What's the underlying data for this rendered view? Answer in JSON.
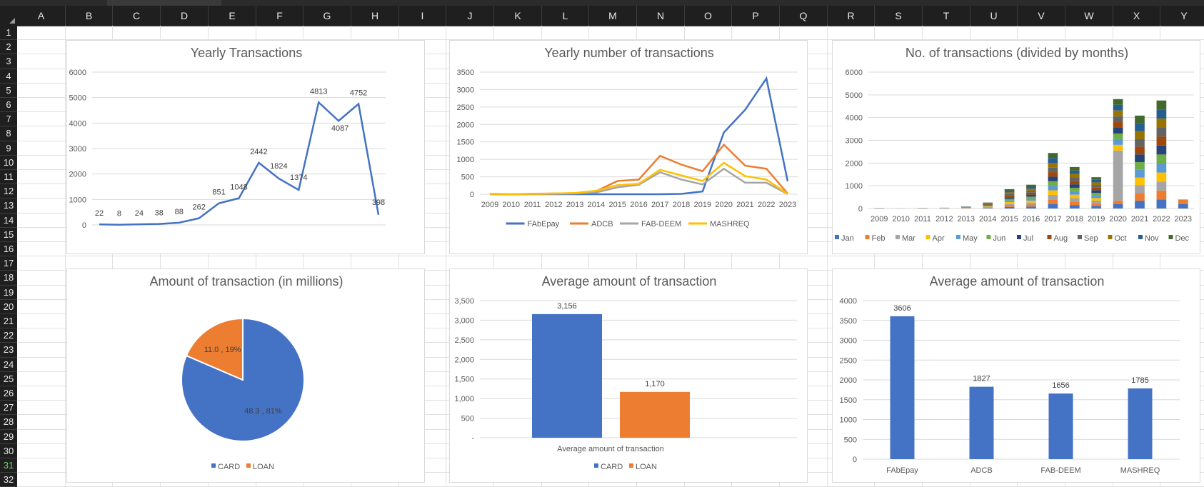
{
  "sheet": {
    "columns": [
      "A",
      "B",
      "C",
      "D",
      "E",
      "F",
      "G",
      "H",
      "I",
      "J",
      "K",
      "L",
      "M",
      "N",
      "O",
      "P",
      "Q",
      "R",
      "S",
      "T",
      "U",
      "V",
      "W",
      "X",
      "Y"
    ],
    "rows": [
      "1",
      "2",
      "3",
      "4",
      "5",
      "6",
      "7",
      "8",
      "9",
      "10",
      "11",
      "12",
      "13",
      "14",
      "15",
      "16",
      "17",
      "18",
      "19",
      "20",
      "21",
      "22",
      "23",
      "24",
      "25",
      "26",
      "27",
      "28",
      "29",
      "30",
      "31",
      "32"
    ],
    "selected_row": "31"
  },
  "colors": {
    "blue": "#4472c4",
    "orange": "#ed7d31",
    "gray": "#a5a5a5",
    "yellow": "#ffc000",
    "lightblue": "#5b9bd5",
    "green": "#70ad47",
    "navy": "#264478",
    "brown": "#9e480e",
    "darkgray": "#636363",
    "olive": "#997300",
    "steel": "#255e91",
    "darkgreen": "#43682b"
  },
  "chart_data": [
    {
      "id": "yearly-transactions",
      "type": "line",
      "title": "Yearly Transactions",
      "ylim": [
        0,
        6000
      ],
      "y_ticks": [
        "0",
        "1000",
        "2000",
        "3000",
        "4000",
        "5000",
        "6000"
      ],
      "values": [
        22,
        8,
        24,
        38,
        88,
        262,
        851,
        1048,
        2442,
        1824,
        1374,
        4813,
        4087,
        4752,
        398
      ],
      "data_labels": [
        "22",
        "8",
        "24",
        "38",
        "88",
        "262",
        "851",
        "1048",
        "2442",
        "1824",
        "1374",
        "4813",
        "4087",
        "4752",
        "398"
      ]
    },
    {
      "id": "yearly-number-of-transactions",
      "type": "line",
      "title": "Yearly number of transactions",
      "ylim": [
        0,
        3500
      ],
      "y_ticks": [
        "0",
        "500",
        "1000",
        "1500",
        "2000",
        "2500",
        "3000",
        "3500"
      ],
      "categories": [
        "2009",
        "2010",
        "2011",
        "2012",
        "2013",
        "2014",
        "2015",
        "2016",
        "2017",
        "2018",
        "2019",
        "2020",
        "2021",
        "2022",
        "2023"
      ],
      "series": [
        {
          "name": "FAbEpay",
          "color": "#4472c4",
          "values": [
            0,
            0,
            0,
            0,
            0,
            0,
            0,
            0,
            0,
            10,
            80,
            1770,
            2420,
            3320,
            370
          ]
        },
        {
          "name": "ADCB",
          "color": "#ed7d31",
          "values": [
            10,
            0,
            15,
            20,
            30,
            90,
            380,
            420,
            1100,
            850,
            660,
            1420,
            820,
            730,
            20
          ]
        },
        {
          "name": "FAB-DEEM",
          "color": "#a5a5a5",
          "values": [
            5,
            0,
            5,
            10,
            20,
            50,
            200,
            270,
            630,
            420,
            280,
            730,
            330,
            330,
            5
          ]
        },
        {
          "name": "MASHREQ",
          "color": "#ffc000",
          "values": [
            10,
            5,
            10,
            20,
            35,
            100,
            260,
            300,
            700,
            540,
            380,
            900,
            520,
            420,
            10
          ]
        }
      ],
      "legend": "bottom"
    },
    {
      "id": "transactions-by-months",
      "type": "bar",
      "stacked": true,
      "title": "No. of transactions (divided by months)",
      "ylim": [
        0,
        6000
      ],
      "y_ticks": [
        "0",
        "1000",
        "2000",
        "3000",
        "4000",
        "5000",
        "6000"
      ],
      "categories": [
        "2009",
        "2010",
        "2011",
        "2012",
        "2013",
        "2014",
        "2015",
        "2016",
        "2017",
        "2018",
        "2019",
        "2020",
        "2021",
        "2022",
        "2023"
      ],
      "series": [
        {
          "name": "Jan",
          "color": "#4472c4",
          "values": [
            2,
            1,
            2,
            3,
            7,
            22,
            71,
            87,
            200,
            152,
            115,
            200,
            341,
            396,
            200
          ]
        },
        {
          "name": "Feb",
          "color": "#ed7d31",
          "values": [
            2,
            1,
            2,
            3,
            7,
            22,
            71,
            87,
            200,
            152,
            115,
            150,
            340,
            396,
            198
          ]
        },
        {
          "name": "Mar",
          "color": "#a5a5a5",
          "values": [
            2,
            1,
            2,
            3,
            7,
            22,
            71,
            87,
            200,
            152,
            115,
            2200,
            340,
            396,
            0
          ]
        },
        {
          "name": "Apr",
          "color": "#ffc000",
          "values": [
            2,
            1,
            2,
            3,
            7,
            22,
            71,
            87,
            200,
            152,
            115,
            250,
            340,
            396,
            0
          ]
        },
        {
          "name": "May",
          "color": "#5b9bd5",
          "values": [
            2,
            1,
            2,
            3,
            7,
            22,
            71,
            87,
            200,
            152,
            115,
            250,
            340,
            396,
            0
          ]
        },
        {
          "name": "Jun",
          "color": "#70ad47",
          "values": [
            2,
            1,
            2,
            3,
            7,
            22,
            71,
            87,
            200,
            152,
            115,
            250,
            340,
            396,
            0
          ]
        },
        {
          "name": "Jul",
          "color": "#264478",
          "values": [
            2,
            1,
            2,
            3,
            7,
            22,
            71,
            87,
            200,
            152,
            115,
            250,
            340,
            396,
            0
          ]
        },
        {
          "name": "Aug",
          "color": "#9e480e",
          "values": [
            2,
            0,
            2,
            3,
            7,
            22,
            71,
            87,
            200,
            152,
            115,
            250,
            340,
            396,
            0
          ]
        },
        {
          "name": "Sep",
          "color": "#636363",
          "values": [
            2,
            0,
            2,
            3,
            7,
            22,
            71,
            87,
            200,
            152,
            115,
            263,
            340,
            396,
            0
          ]
        },
        {
          "name": "Oct",
          "color": "#997300",
          "values": [
            2,
            0,
            2,
            3,
            7,
            22,
            71,
            87,
            200,
            152,
            115,
            250,
            342,
            396,
            0
          ]
        },
        {
          "name": "Nov",
          "color": "#255e91",
          "values": [
            1,
            0,
            2,
            3,
            8,
            22,
            71,
            88,
            221,
            152,
            114,
            250,
            342,
            396,
            0
          ]
        },
        {
          "name": "Dec",
          "color": "#43682b",
          "values": [
            1,
            0,
            2,
            2,
            8,
            20,
            70,
            88,
            221,
            152,
            113,
            250,
            342,
            396,
            0
          ]
        }
      ],
      "legend": "bottom"
    },
    {
      "id": "amount-of-transaction",
      "type": "pie",
      "title": "Amount of transaction (in millions)",
      "slices": [
        {
          "name": "CARD",
          "value": 48.3,
          "percent": 81,
          "label": "48.3 , 81%",
          "color": "#4472c4"
        },
        {
          "name": "LOAN",
          "value": 11.0,
          "percent": 19,
          "label": "11.0 , 19%",
          "color": "#ed7d31"
        }
      ],
      "legend": "bottom"
    },
    {
      "id": "average-amount-card-loan",
      "type": "bar",
      "title": "Average amount of transaction",
      "xlabel": "Average amount of transaction",
      "ylim": [
        0,
        3500
      ],
      "y_ticks": [
        "-",
        "500",
        "1,000",
        "1,500",
        "2,000",
        "2,500",
        "3,000",
        "3,500"
      ],
      "series": [
        {
          "name": "CARD",
          "value": 3156,
          "label": "3,156",
          "color": "#4472c4"
        },
        {
          "name": "LOAN",
          "value": 1170,
          "label": "1,170",
          "color": "#ed7d31"
        }
      ],
      "legend": "bottom"
    },
    {
      "id": "average-amount-by-bank",
      "type": "bar",
      "title": "Average amount of transaction",
      "ylim": [
        0,
        4000
      ],
      "y_ticks": [
        "0",
        "500",
        "1000",
        "1500",
        "2000",
        "2500",
        "3000",
        "3500",
        "4000"
      ],
      "categories": [
        "FAbEpay",
        "ADCB",
        "FAB-DEEM",
        "MASHREQ"
      ],
      "values": [
        3606,
        1827,
        1656,
        1785
      ],
      "data_labels": [
        "3606",
        "1827",
        "1656",
        "1785"
      ]
    }
  ]
}
